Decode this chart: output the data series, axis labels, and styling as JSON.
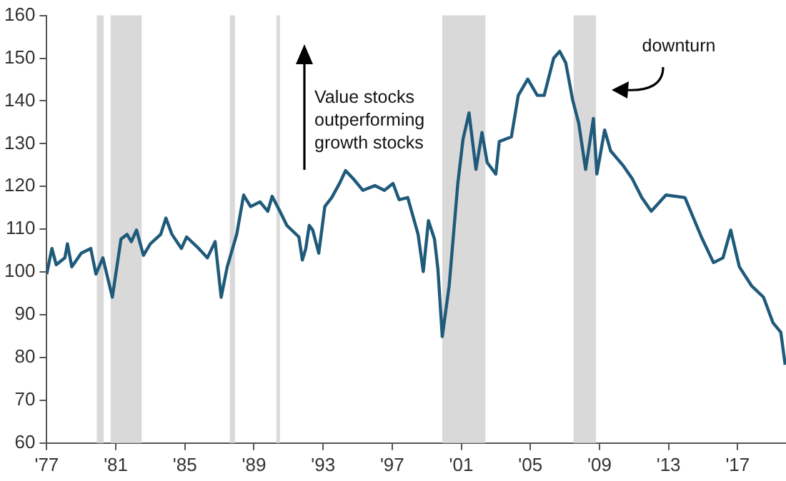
{
  "chart_data": {
    "type": "line",
    "x": [
      1977.0,
      1977.3,
      1977.55,
      1978.05,
      1978.2,
      1978.45,
      1979.0,
      1979.55,
      1979.85,
      1980.25,
      1980.8,
      1981.3,
      1981.65,
      1981.9,
      1982.2,
      1982.6,
      1983.0,
      1983.6,
      1983.9,
      1984.25,
      1984.8,
      1985.1,
      1985.8,
      1986.3,
      1986.75,
      1987.1,
      1987.45,
      1988.0,
      1988.4,
      1988.8,
      1989.35,
      1989.8,
      1990.05,
      1990.5,
      1990.9,
      1991.6,
      1991.8,
      1992.0,
      1992.2,
      1992.4,
      1992.75,
      1993.1,
      1993.5,
      1993.95,
      1994.3,
      1994.75,
      1995.3,
      1996.0,
      1996.55,
      1997.05,
      1997.4,
      1997.9,
      1998.5,
      1998.8,
      1999.1,
      1999.45,
      1999.65,
      1999.9,
      2000.3,
      2000.8,
      2001.1,
      2001.45,
      2001.85,
      2002.2,
      2002.5,
      2003.0,
      2003.2,
      2003.9,
      2004.3,
      2004.85,
      2005.4,
      2005.8,
      2006.35,
      2006.7,
      2007.05,
      2007.45,
      2007.8,
      2008.2,
      2008.65,
      2008.85,
      2009.3,
      2009.65,
      2010.35,
      2010.9,
      2011.45,
      2012.0,
      2012.85,
      2013.95,
      2014.9,
      2015.6,
      2016.15,
      2016.6,
      2017.1,
      2017.8,
      2018.5,
      2019.05,
      2019.5,
      2019.75
    ],
    "series": [
      {
        "color": "#1f5a7a",
        "values": [
          99.5,
          105.5,
          101.7,
          103.3,
          106.6,
          101.2,
          104.4,
          105.5,
          99.5,
          103.3,
          94.1,
          107.7,
          108.8,
          107.1,
          109.8,
          103.9,
          106.6,
          108.8,
          112.6,
          108.8,
          105.5,
          108.2,
          105.5,
          103.3,
          107.1,
          94.1,
          101.2,
          108.8,
          118.0,
          115.3,
          116.4,
          114.2,
          117.7,
          114.2,
          110.9,
          108.2,
          102.8,
          105.5,
          110.9,
          109.8,
          104.4,
          115.3,
          117.4,
          120.7,
          123.7,
          121.8,
          119.1,
          120.2,
          119.1,
          120.7,
          116.9,
          117.4,
          108.8,
          100.1,
          112.0,
          107.7,
          100.6,
          84.9,
          96.8,
          120.7,
          131.0,
          137.2,
          124.0,
          132.6,
          125.6,
          122.9,
          130.5,
          131.6,
          141.3,
          145.1,
          141.3,
          141.3,
          150.0,
          151.6,
          148.9,
          140.2,
          134.8,
          124.0,
          135.9,
          122.9,
          133.2,
          128.3,
          125.0,
          121.8,
          117.4,
          114.2,
          118.0,
          117.4,
          108.2,
          102.2,
          103.3,
          109.8,
          101.2,
          96.8,
          94.1,
          88.1,
          85.9,
          78.3
        ]
      }
    ],
    "xlim": [
      1977,
      2019.8
    ],
    "xticks": [
      {
        "value": 1977,
        "label": "'77"
      },
      {
        "value": 1981,
        "label": "'81"
      },
      {
        "value": 1985,
        "label": "'85"
      },
      {
        "value": 1989,
        "label": "'89"
      },
      {
        "value": 1993,
        "label": "'93"
      },
      {
        "value": 1997,
        "label": "'97"
      },
      {
        "value": 2001,
        "label": "'01"
      },
      {
        "value": 2005,
        "label": "'05"
      },
      {
        "value": 2009,
        "label": "'09"
      },
      {
        "value": 2013,
        "label": "'13"
      },
      {
        "value": 2017,
        "label": "'17"
      }
    ],
    "ylim": [
      60,
      160
    ],
    "yticks": [
      60,
      70,
      80,
      90,
      100,
      110,
      120,
      130,
      140,
      150,
      160
    ],
    "grid": false,
    "legend": false,
    "marker": "none",
    "line_style": "solid",
    "bands": [
      {
        "axis": "x",
        "from": 1979.9,
        "to": 1980.3,
        "color": "#d9d9d9"
      },
      {
        "axis": "x",
        "from": 1980.7,
        "to": 1982.5,
        "color": "#d9d9d9"
      },
      {
        "axis": "x",
        "from": 1987.6,
        "to": 1987.9,
        "color": "#d9d9d9"
      },
      {
        "axis": "x",
        "from": 1990.3,
        "to": 1990.5,
        "color": "#d9d9d9"
      },
      {
        "axis": "x",
        "from": 1999.9,
        "to": 2002.4,
        "color": "#d9d9d9"
      },
      {
        "axis": "x",
        "from": 2007.5,
        "to": 2008.8,
        "color": "#d9d9d9"
      }
    ],
    "annotations": [
      "Value stocks outperforming growth stocks",
      "downturn"
    ]
  }
}
